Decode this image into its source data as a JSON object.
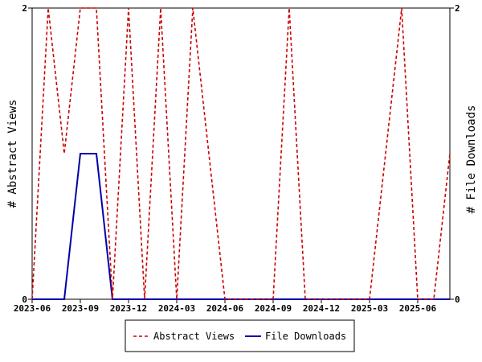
{
  "chart_data": {
    "type": "line",
    "x": [
      "2023-06",
      "2023-07",
      "2023-08",
      "2023-09",
      "2023-10",
      "2023-11",
      "2023-12",
      "2024-01",
      "2024-02",
      "2024-03",
      "2024-04",
      "2024-05",
      "2024-06",
      "2024-07",
      "2024-08",
      "2024-09",
      "2024-10",
      "2024-11",
      "2024-12",
      "2025-01",
      "2025-02",
      "2025-03",
      "2025-04",
      "2025-05",
      "2025-06",
      "2025-07",
      "2025-08"
    ],
    "x_ticks": [
      "2023-06",
      "2023-09",
      "2023-12",
      "2024-03",
      "2024-06",
      "2024-09",
      "2024-12",
      "2025-03",
      "2025-06"
    ],
    "series": [
      {
        "name": "Abstract Views",
        "color": "#cc0000",
        "style": "dashed",
        "axis": "left",
        "values": [
          0,
          2,
          1,
          2,
          2,
          0,
          2,
          0,
          2,
          0,
          2,
          1,
          0,
          0,
          0,
          0,
          2,
          0,
          0,
          0,
          0,
          0,
          1,
          2,
          0,
          0,
          1
        ]
      },
      {
        "name": "File Downloads",
        "color": "#0000aa",
        "style": "solid",
        "axis": "right",
        "values": [
          0,
          0,
          0,
          1,
          1,
          0,
          0,
          0,
          0,
          0,
          0,
          0,
          0,
          0,
          0,
          0,
          0,
          0,
          0,
          0,
          0,
          0,
          0,
          0,
          0,
          0,
          0
        ]
      }
    ],
    "ylabel": "# Abstract Views",
    "y2label": "# File Downloads",
    "ylim": [
      0,
      2
    ],
    "y2lim": [
      0,
      2
    ],
    "y_ticks": [
      "0",
      "2"
    ],
    "y2_ticks": [
      "0",
      "2"
    ],
    "grid": false,
    "legend_position": "bottom-center"
  }
}
